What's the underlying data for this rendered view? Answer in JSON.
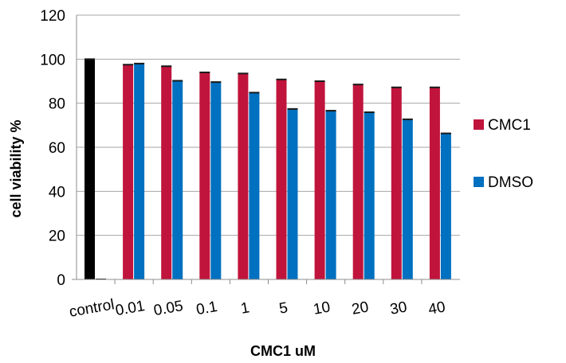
{
  "chart_data": {
    "type": "bar",
    "title": "",
    "xlabel": "CMC1  uM",
    "ylabel": "cell viability %",
    "ylim": [
      0,
      120
    ],
    "yticks": [
      0,
      20,
      40,
      60,
      80,
      100,
      120
    ],
    "grid": true,
    "legend_position": "right",
    "categories": [
      "control",
      "0.01",
      "0.05",
      "0.1",
      "1",
      "5",
      "10",
      "20",
      "30",
      "40"
    ],
    "series": [
      {
        "name": "CMC1",
        "color": "#c0143c",
        "values": [
          100,
          97.5,
          96.8,
          94,
          93.5,
          90.8,
          90,
          88.5,
          87.2,
          87.2
        ]
      },
      {
        "name": "DMSO",
        "color": "#0070c0",
        "values": [
          0,
          98,
          90.2,
          89.6,
          84.8,
          77.4,
          76.6,
          75.9,
          72.7,
          66.3
        ]
      }
    ],
    "control_color": "#000000"
  }
}
